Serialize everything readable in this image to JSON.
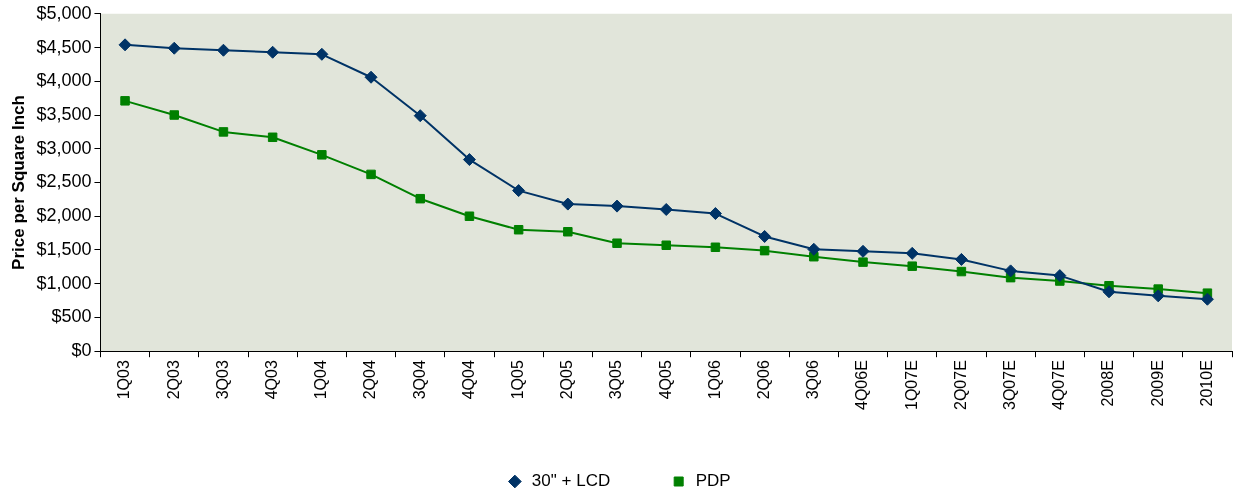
{
  "chart_data": {
    "type": "line",
    "ylabel": "Price per Square Inch",
    "categories": [
      "1Q03",
      "2Q03",
      "3Q03",
      "4Q03",
      "1Q04",
      "2Q04",
      "3Q04",
      "4Q04",
      "1Q05",
      "2Q05",
      "3Q05",
      "4Q05",
      "1Q06",
      "2Q06",
      "3Q06",
      "4Q06E",
      "1Q07E",
      "2Q07E",
      "3Q07E",
      "4Q07E",
      "2008E",
      "2009E",
      "2010E"
    ],
    "series": [
      {
        "name": "30\" + LCD",
        "color": "#003366",
        "marker": "diamond",
        "values": [
          4540,
          4490,
          4460,
          4430,
          4400,
          4060,
          3490,
          2840,
          2380,
          2180,
          2150,
          2100,
          2040,
          1700,
          1510,
          1480,
          1450,
          1360,
          1190,
          1120,
          880,
          820,
          770
        ]
      },
      {
        "name": "PDP",
        "color": "#008000",
        "marker": "square",
        "values": [
          3710,
          3500,
          3250,
          3170,
          2910,
          2620,
          2260,
          2000,
          1800,
          1770,
          1600,
          1570,
          1540,
          1490,
          1400,
          1320,
          1260,
          1180,
          1090,
          1040,
          970,
          920,
          860
        ]
      }
    ],
    "ylim": [
      0,
      5000
    ],
    "yticks": [
      {
        "value": 0,
        "label": "$0"
      },
      {
        "value": 500,
        "label": "$500"
      },
      {
        "value": 1000,
        "label": "$1,000"
      },
      {
        "value": 1500,
        "label": "$1,500"
      },
      {
        "value": 2000,
        "label": "$2,000"
      },
      {
        "value": 2500,
        "label": "$2,500"
      },
      {
        "value": 3000,
        "label": "$3,000"
      },
      {
        "value": 3500,
        "label": "$3,500"
      },
      {
        "value": 4000,
        "label": "$4,000"
      },
      {
        "value": 4500,
        "label": "$4,500"
      },
      {
        "value": 5000,
        "label": "$5,000"
      }
    ],
    "grid": false,
    "legend": "bottom",
    "line_style": "solid"
  }
}
